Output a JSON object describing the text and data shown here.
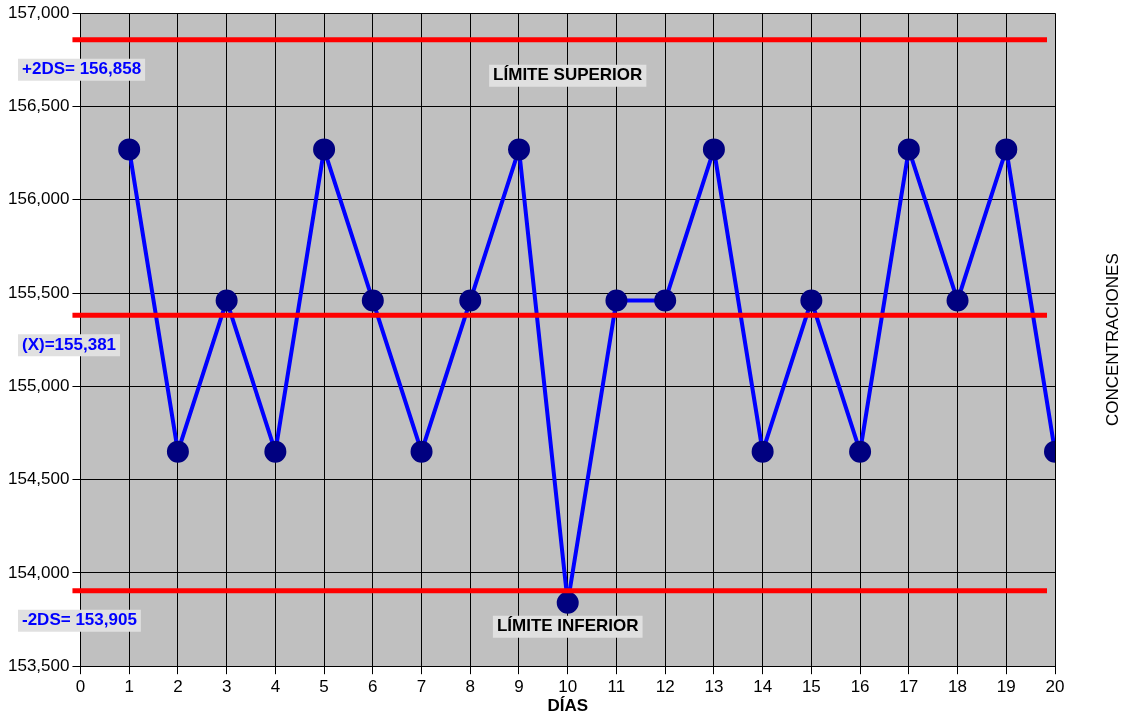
{
  "chart_data": {
    "type": "line",
    "xlabel": "DÍAS",
    "ylabel": "CONCENTRACIONES",
    "x": [
      1,
      2,
      3,
      4,
      5,
      6,
      7,
      8,
      9,
      10,
      11,
      12,
      13,
      14,
      15,
      16,
      17,
      18,
      19,
      20
    ],
    "series": [
      {
        "color": "#0000ff",
        "values": [
          156270,
          154650,
          155460,
          154650,
          156270,
          155460,
          154650,
          155460,
          156270,
          153840,
          155460,
          155460,
          156270,
          154650,
          155460,
          154650,
          156270,
          155460,
          156270,
          154650
        ]
      }
    ],
    "marker": "circle",
    "line_style": "solid",
    "grid": true,
    "legend": false,
    "xlim": [
      0,
      20
    ],
    "xticks": [
      0,
      1,
      2,
      3,
      4,
      5,
      6,
      7,
      8,
      9,
      10,
      11,
      12,
      13,
      14,
      15,
      16,
      17,
      18,
      19,
      20
    ],
    "ylim": [
      153500,
      157000
    ],
    "yticks": [
      {
        "value": 153500,
        "label": "153,500"
      },
      {
        "value": 154000,
        "label": "154,000"
      },
      {
        "value": 154500,
        "label": "154,500"
      },
      {
        "value": 155000,
        "label": "155,000"
      },
      {
        "value": 155500,
        "label": "155,500"
      },
      {
        "value": 156000,
        "label": "156,000"
      },
      {
        "value": 156500,
        "label": "156,500"
      },
      {
        "value": 157000,
        "label": "157,000"
      }
    ],
    "ref_lines": [
      {
        "axis": "y",
        "value": 156858,
        "label": "+2DS= 156,858",
        "color": "#ff0000"
      },
      {
        "axis": "y",
        "value": 155381,
        "label": "(X)=155,381",
        "color": "#ff0000"
      },
      {
        "axis": "y",
        "value": 153905,
        "label": "-2DS= 153,905",
        "color": "#ff0000"
      }
    ],
    "annotations": [
      "LÍMITE SUPERIOR",
      "LÍMITE INFERIOR"
    ]
  }
}
